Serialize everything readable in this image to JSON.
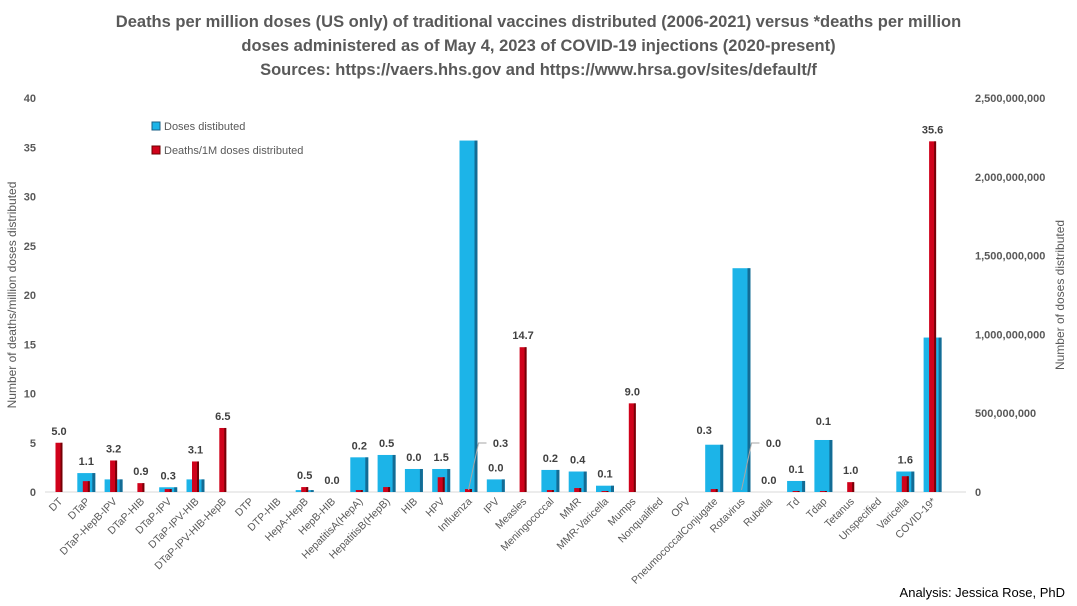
{
  "chart_data": {
    "type": "bar",
    "title_lines": [
      "Deaths per million doses (US only) of traditional vaccines distributed (2006-2021) versus *deaths per million",
      "doses administered as of May 4, 2023 of COVID-19 injections (2020-present)",
      "Sources: https://vaers.hhs.gov and https://www.hrsa.gov/sites/default/f"
    ],
    "ylabel": "Number of deaths/million doses distributed",
    "y2label": "Number of doses distributed",
    "ylim": [
      0,
      40
    ],
    "y2lim": [
      0,
      2500000000
    ],
    "yticks": [
      0,
      5,
      10,
      15,
      20,
      25,
      30,
      35,
      40
    ],
    "y2ticks": [
      "0",
      "500,000,000",
      "1,000,000,000",
      "1,500,000,000",
      "2,000,000,000",
      "2,500,000,000"
    ],
    "legend": {
      "placement": "top-left",
      "entries": [
        "Doses distibuted",
        "Deaths/1M doses distributed"
      ]
    },
    "colors": {
      "doses": "#1CB4E8",
      "deaths": "#D0021B"
    },
    "categories": [
      "DT",
      "DTaP",
      "DTaP-HepB-IPV",
      "DTaP-HIB",
      "DTaP-IPV",
      "DTaP-IPV-HIB",
      "DTaP-IPV-HIB-HepB",
      "DTP",
      "DTP-HIB",
      "HepA-HepB",
      "HepB-HIB",
      "HepatitisA(HepA)",
      "HepatitisB(HepB)",
      "HIB",
      "HPV",
      "Influenza",
      "IPV",
      "Measles",
      "Meningococcal",
      "MMR",
      "MMR-Varicella",
      "Mumps",
      "Nonqualified",
      "OPV",
      "PneumococcalConjugate",
      "Rotavirus",
      "Rubella",
      "Td",
      "Tdap",
      "Tetanus",
      "Unspecified",
      "Varicella",
      "COVID-19*"
    ],
    "series": [
      {
        "name": "Doses distibuted",
        "axis": "right",
        "values": [
          0,
          120000000,
          80000000,
          0,
          30000000,
          80000000,
          0,
          0,
          0,
          12000000,
          0,
          220000000,
          235000000,
          146000000,
          146000000,
          2230000000,
          80000000,
          0,
          140000000,
          130000000,
          40000000,
          0,
          0,
          0,
          300000000,
          1420000000,
          0,
          70000000,
          330000000,
          0,
          0,
          130000000,
          980000000
        ]
      },
      {
        "name": "Deaths/1M doses distributed",
        "axis": "left",
        "values": [
          5.0,
          1.1,
          3.2,
          0.9,
          0.3,
          3.1,
          6.5,
          0,
          0,
          0.5,
          0.0,
          0.2,
          0.5,
          0.0,
          1.5,
          0.3,
          0.0,
          14.7,
          0.2,
          0.4,
          0.1,
          9.0,
          0,
          0,
          0.3,
          0.0,
          0.0,
          0.1,
          0.1,
          1.0,
          0,
          1.6,
          35.6
        ],
        "labels": [
          "5.0",
          "1.1",
          "3.2",
          "0.9",
          "0.3",
          "3.1",
          "6.5",
          "",
          "",
          "0.5",
          "0.0",
          "0.2",
          "0.5",
          "0.0",
          "1.5",
          "0.3",
          "0.0",
          "14.7",
          "0.2",
          "0.4",
          "0.1",
          "9.0",
          "",
          "",
          "0.3",
          "0.0",
          "0.0",
          "0.1",
          "0.1",
          "1.0",
          "",
          "1.6",
          "35.6"
        ]
      }
    ]
  },
  "credit": "Analysis: Jessica Rose, PhD"
}
